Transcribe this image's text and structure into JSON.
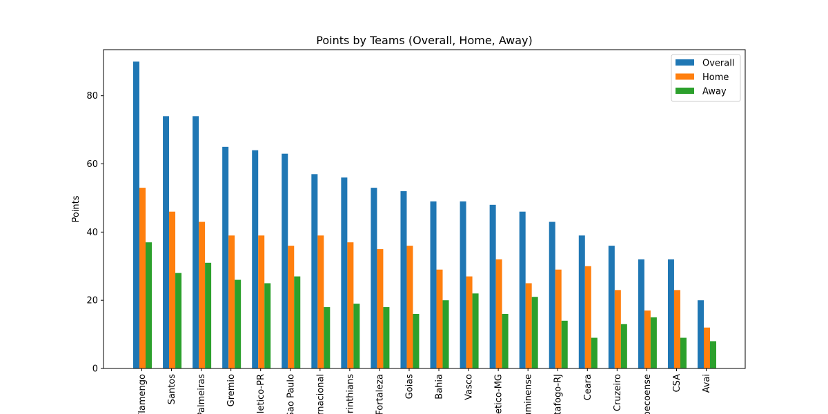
{
  "chart_data": {
    "type": "bar",
    "title": "Points by Teams (Overall, Home, Away)",
    "xlabel": "",
    "ylabel": "Points",
    "ylim": [
      0,
      93.5
    ],
    "yticks": [
      0,
      20,
      40,
      60,
      80
    ],
    "grid": false,
    "legend_position": "top-right",
    "categories": [
      "Flamengo",
      "Santos",
      "Palmeiras",
      "Gremio",
      "Athletico-PR",
      "Sao Paulo",
      "Internacional",
      "Corinthians",
      "Fortaleza",
      "Goias",
      "Bahia",
      "Vasco",
      "Atletico-MG",
      "Fluminense",
      "Botafogo-RJ",
      "Ceara",
      "Cruzeiro",
      "Chapecoense",
      "CSA",
      "Avai"
    ],
    "series": [
      {
        "name": "Overall",
        "color": "#1f77b4",
        "values": [
          90,
          74,
          74,
          65,
          64,
          63,
          57,
          56,
          53,
          52,
          49,
          49,
          48,
          46,
          43,
          39,
          36,
          32,
          32,
          20
        ]
      },
      {
        "name": "Home",
        "color": "#ff7f0e",
        "values": [
          53,
          46,
          43,
          39,
          39,
          36,
          39,
          37,
          35,
          36,
          29,
          27,
          32,
          25,
          29,
          30,
          23,
          17,
          23,
          12
        ]
      },
      {
        "name": "Away",
        "color": "#2ca02c",
        "values": [
          37,
          28,
          31,
          26,
          25,
          27,
          18,
          19,
          18,
          16,
          20,
          22,
          16,
          21,
          14,
          9,
          13,
          15,
          9,
          8
        ]
      }
    ]
  }
}
